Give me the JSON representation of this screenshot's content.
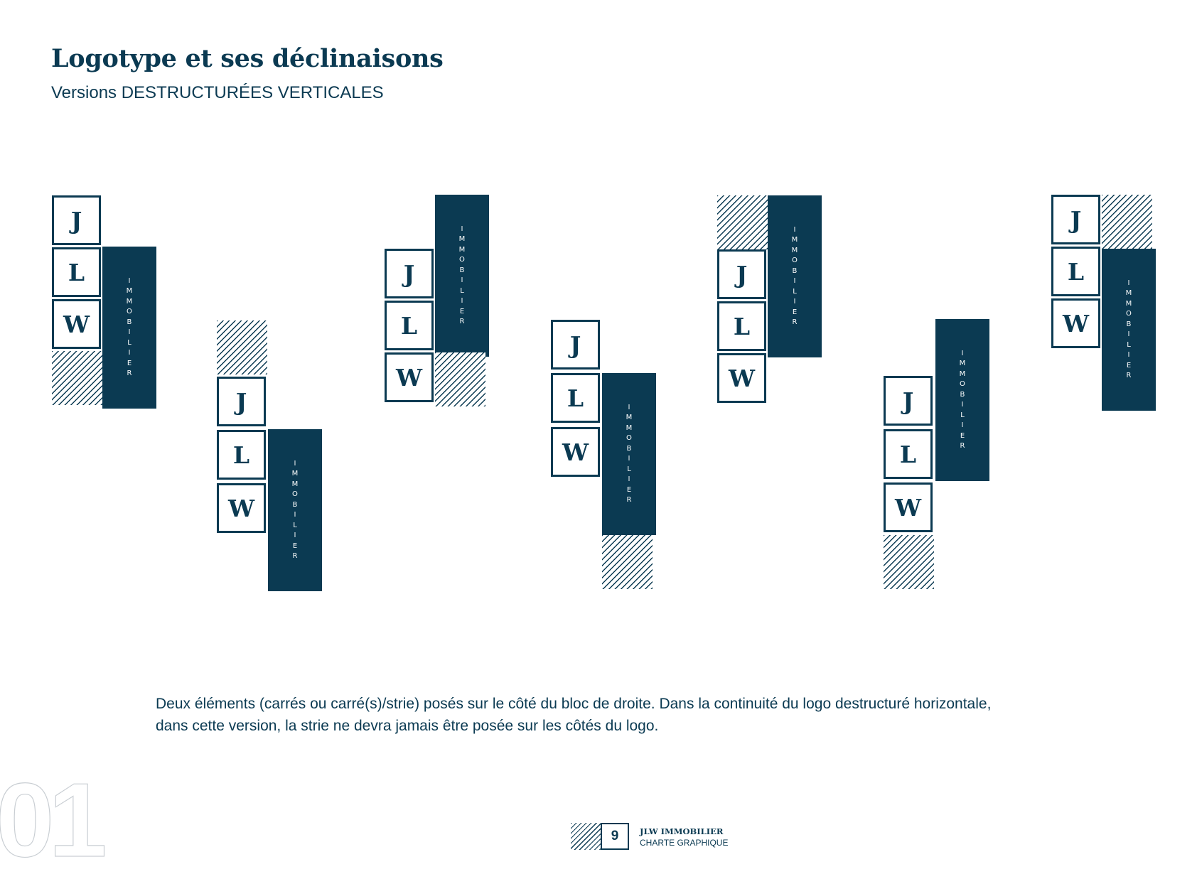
{
  "header": {
    "title": "Logotype et ses déclinaisons",
    "subtitle": "Versions DESTRUCTURÉES VERTICALES"
  },
  "logo": {
    "letters": [
      "J",
      "L",
      "W"
    ],
    "bar_letters": [
      "I",
      "M",
      "M",
      "O",
      "B",
      "I",
      "L",
      "I",
      "E",
      "R"
    ]
  },
  "variations": [
    {
      "label": "variation-1"
    },
    {
      "label": "variation-2"
    },
    {
      "label": "variation-3"
    },
    {
      "label": "variation-4"
    },
    {
      "label": "variation-5"
    },
    {
      "label": "variation-6"
    },
    {
      "label": "variation-7"
    }
  ],
  "description": {
    "line1": "Deux éléments (carrés ou carré(s)/strie) posés sur le côté du bloc de droite. Dans la continuité du logo destructuré horizontale,",
    "line2": "dans cette version, la strie ne devra jamais être posée sur les côtés du logo."
  },
  "section_number": "01",
  "footer": {
    "page_number": "9",
    "brand": "JLW IMMOBILIER",
    "subtitle": "CHARTE GRAPHIQUE"
  },
  "colors": {
    "primary": "#0b3a52",
    "background": "#ffffff",
    "section_number_outline": "#c9ced3"
  }
}
